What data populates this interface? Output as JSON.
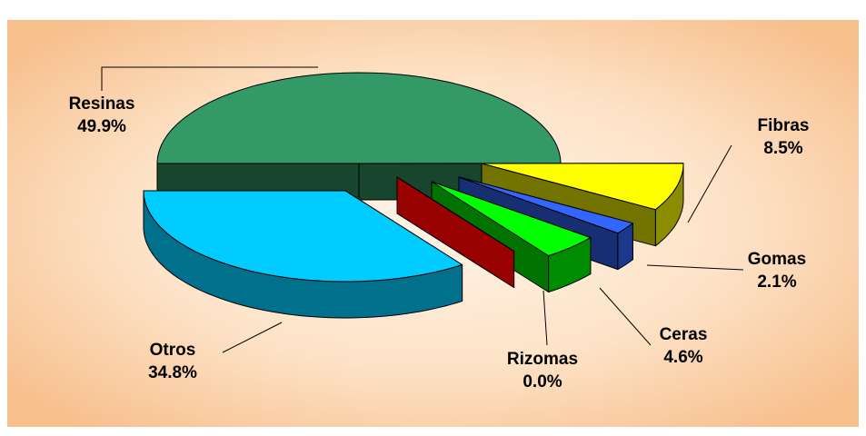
{
  "chart_data": {
    "type": "pie",
    "categories": [
      "Resinas",
      "Fibras",
      "Gomas",
      "Ceras",
      "Rizomas",
      "Otros"
    ],
    "values": [
      49.9,
      8.5,
      2.1,
      4.6,
      0.0,
      34.8
    ],
    "value_labels": [
      "49.9%",
      "8.5%",
      "2.1%",
      "4.6%",
      "0.0%",
      "34.8%"
    ],
    "colors": [
      "#339966",
      "#ffff00",
      "#3366ff",
      "#00ff00",
      "#990000",
      "#00ccff"
    ]
  }
}
